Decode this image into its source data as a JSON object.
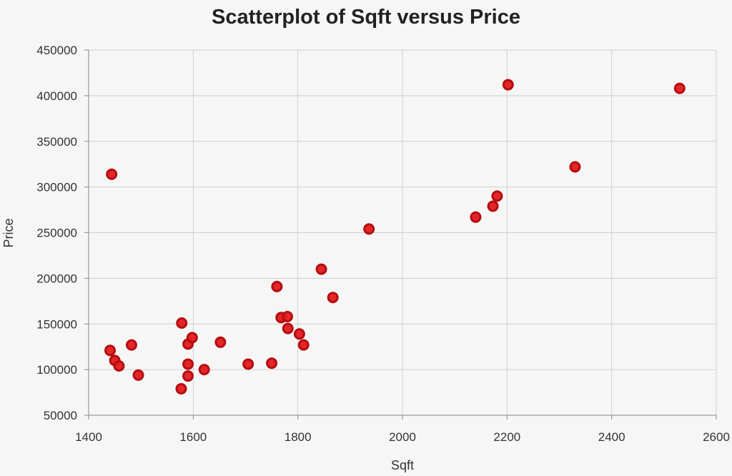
{
  "chart_data": {
    "type": "scatter",
    "title": "Scatterplot of Sqft versus Price",
    "xlabel": "Sqft",
    "ylabel": "Price",
    "xlim": [
      1400,
      2600
    ],
    "ylim": [
      50000,
      450000
    ],
    "x_ticks": [
      "1400",
      "1600",
      "1800",
      "2000",
      "2200",
      "2400",
      "2600"
    ],
    "y_ticks": [
      "50000",
      "100000",
      "150000",
      "200000",
      "250000",
      "300000",
      "350000",
      "400000",
      "450000"
    ],
    "grid": true,
    "point_color": "#e31a1c",
    "point_stroke": "#b50d10",
    "points": [
      {
        "x": 1441,
        "y": 121000
      },
      {
        "x": 1444,
        "y": 314000
      },
      {
        "x": 1450,
        "y": 110000
      },
      {
        "x": 1458,
        "y": 104000
      },
      {
        "x": 1482,
        "y": 127000
      },
      {
        "x": 1495,
        "y": 94000
      },
      {
        "x": 1577,
        "y": 79000
      },
      {
        "x": 1578,
        "y": 151000
      },
      {
        "x": 1590,
        "y": 128000
      },
      {
        "x": 1590,
        "y": 106000
      },
      {
        "x": 1590,
        "y": 93000
      },
      {
        "x": 1598,
        "y": 135000
      },
      {
        "x": 1621,
        "y": 100000
      },
      {
        "x": 1652,
        "y": 130000
      },
      {
        "x": 1705,
        "y": 106000
      },
      {
        "x": 1750,
        "y": 107000
      },
      {
        "x": 1760,
        "y": 191000
      },
      {
        "x": 1768,
        "y": 157000
      },
      {
        "x": 1780,
        "y": 158000
      },
      {
        "x": 1781,
        "y": 145000
      },
      {
        "x": 1803,
        "y": 139000
      },
      {
        "x": 1811,
        "y": 127000
      },
      {
        "x": 1845,
        "y": 210000
      },
      {
        "x": 1867,
        "y": 179000
      },
      {
        "x": 1936,
        "y": 254000
      },
      {
        "x": 2140,
        "y": 267000
      },
      {
        "x": 2173,
        "y": 279000
      },
      {
        "x": 2181,
        "y": 290000
      },
      {
        "x": 2202,
        "y": 412000
      },
      {
        "x": 2330,
        "y": 322000
      },
      {
        "x": 2530,
        "y": 408000
      }
    ]
  }
}
